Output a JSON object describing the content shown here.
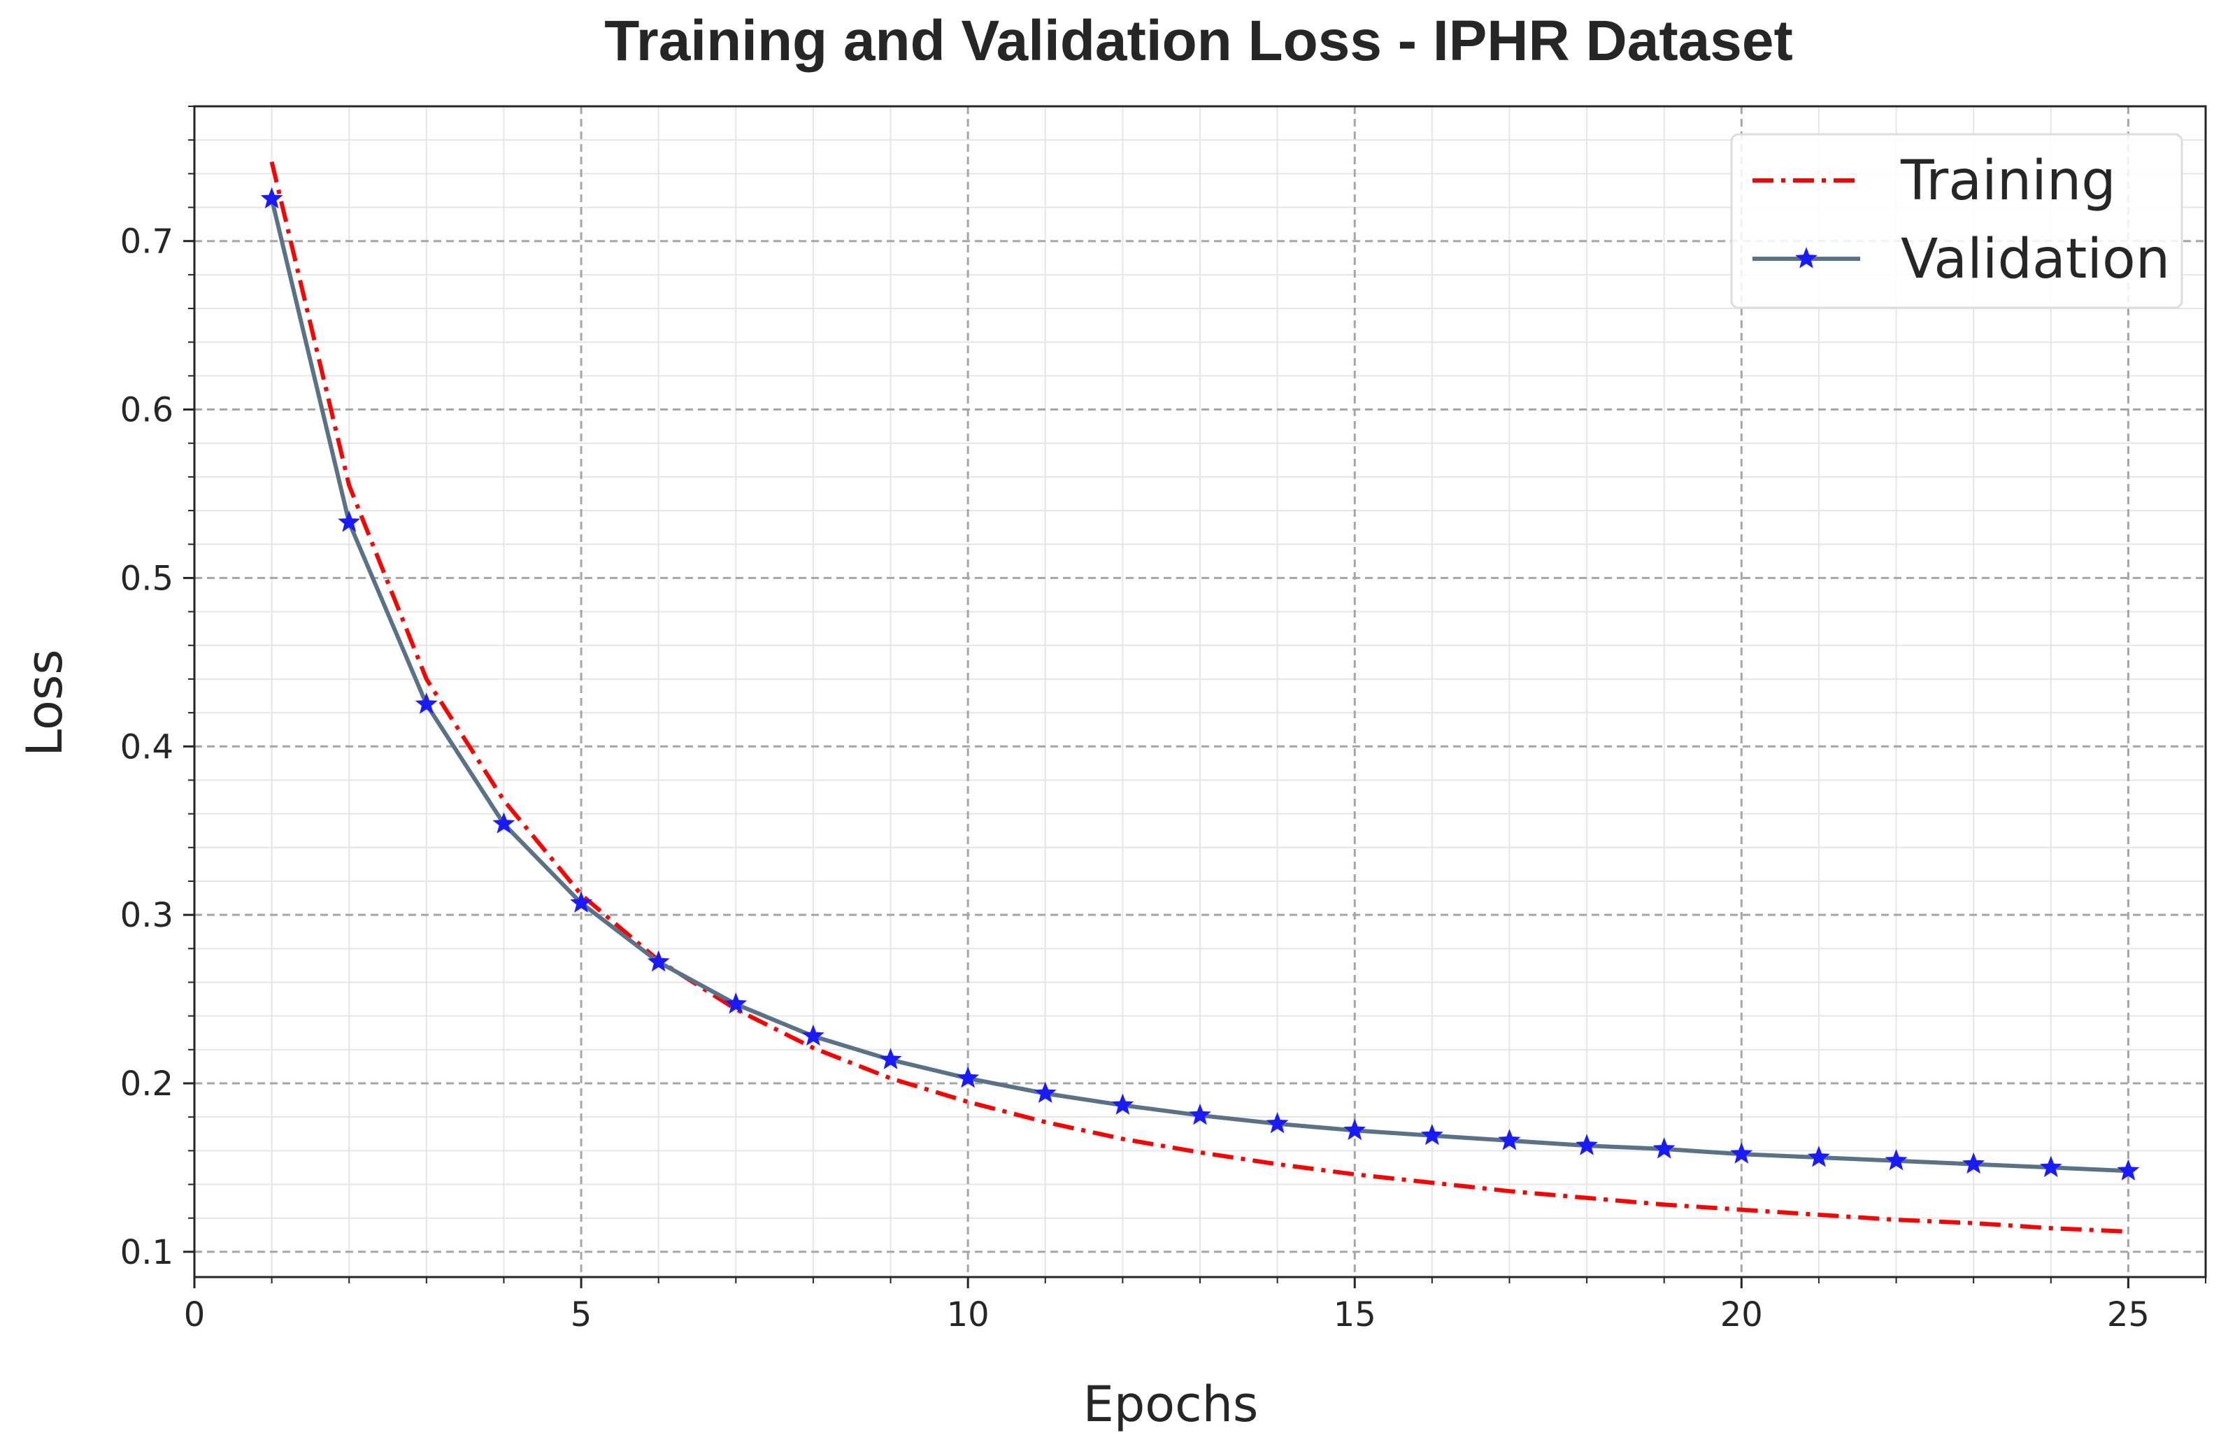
{
  "chart_data": {
    "type": "line",
    "title": "Training and Validation Loss - IPHR Dataset",
    "xlabel": "Epochs",
    "ylabel": "Loss",
    "xlim": [
      0,
      26
    ],
    "ylim": [
      0.085,
      0.78
    ],
    "x_ticks": [
      0,
      5,
      10,
      15,
      20,
      25
    ],
    "x_tick_labels": [
      "0",
      "5",
      "10",
      "15",
      "20",
      "25"
    ],
    "y_ticks": [
      0.1,
      0.2,
      0.3,
      0.4,
      0.5,
      0.6,
      0.7
    ],
    "y_tick_labels": [
      "0.1",
      "0.2",
      "0.3",
      "0.4",
      "0.5",
      "0.6",
      "0.7"
    ],
    "x_minor_step": 1,
    "y_minor_step": 0.02,
    "grid": true,
    "legend_position": "top-right",
    "x": [
      1,
      2,
      3,
      4,
      5,
      6,
      7,
      8,
      9,
      10,
      11,
      12,
      13,
      14,
      15,
      16,
      17,
      18,
      19,
      20,
      21,
      22,
      23,
      24,
      25
    ],
    "series": [
      {
        "name": "Training",
        "color": "#ff0000",
        "line_style": "dash-dot",
        "marker": "none",
        "values": [
          0.747,
          0.555,
          0.44,
          0.368,
          0.312,
          0.273,
          0.244,
          0.221,
          0.203,
          0.189,
          0.177,
          0.167,
          0.159,
          0.152,
          0.146,
          0.141,
          0.136,
          0.132,
          0.128,
          0.125,
          0.122,
          0.119,
          0.117,
          0.114,
          0.112
        ]
      },
      {
        "name": "Validation",
        "color": "#5a7288",
        "line_style": "solid",
        "marker": "star",
        "marker_color": "#1a1aff",
        "values": [
          0.725,
          0.533,
          0.425,
          0.354,
          0.307,
          0.272,
          0.247,
          0.228,
          0.214,
          0.203,
          0.194,
          0.187,
          0.181,
          0.176,
          0.172,
          0.169,
          0.166,
          0.163,
          0.161,
          0.158,
          0.156,
          0.154,
          0.152,
          0.15,
          0.148
        ]
      }
    ]
  }
}
